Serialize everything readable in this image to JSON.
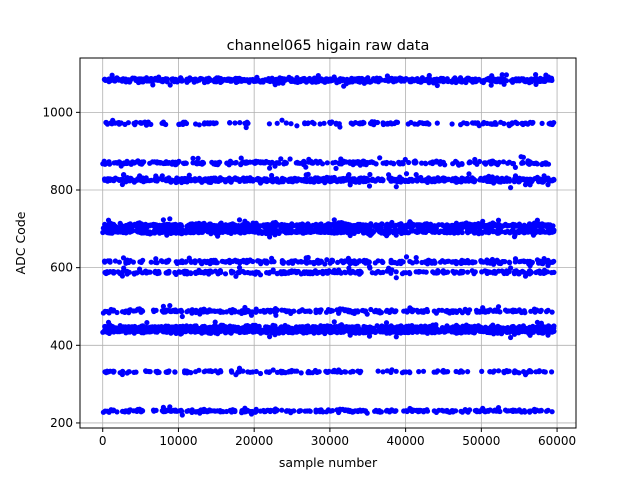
{
  "chart_data": {
    "type": "scatter",
    "title": "channel065 higain raw data",
    "xlabel": "sample number",
    "ylabel": "ADC Code",
    "xlim": [
      -3000,
      62500
    ],
    "ylim": [
      187,
      1140
    ],
    "grid": true,
    "marker_color": "#0000ff",
    "x_ticks": [
      0,
      10000,
      20000,
      30000,
      40000,
      50000,
      60000
    ],
    "x_tick_labels": [
      "0",
      "10000",
      "20000",
      "30000",
      "40000",
      "50000",
      "60000"
    ],
    "y_ticks": [
      200,
      400,
      600,
      800,
      1000
    ],
    "y_tick_labels": [
      "200",
      "400",
      "600",
      "800",
      "1000"
    ],
    "x_range": [
      0,
      59600
    ],
    "series": [
      {
        "y": 1083,
        "spread": 5,
        "density": "dense"
      },
      {
        "y": 972,
        "spread": 3,
        "density": "sparse"
      },
      {
        "y": 870,
        "spread": 4,
        "density": "medium"
      },
      {
        "y": 826,
        "spread": 5,
        "density": "dense"
      },
      {
        "y": 708,
        "spread": 5,
        "density": "dense"
      },
      {
        "y": 693,
        "spread": 4,
        "density": "dense"
      },
      {
        "y": 615,
        "spread": 4,
        "density": "medium"
      },
      {
        "y": 588,
        "spread": 4,
        "density": "medium"
      },
      {
        "y": 488,
        "spread": 4,
        "density": "medium"
      },
      {
        "y": 445,
        "spread": 5,
        "density": "dense"
      },
      {
        "y": 436,
        "spread": 4,
        "density": "dense"
      },
      {
        "y": 332,
        "spread": 3,
        "density": "sparse"
      },
      {
        "y": 231,
        "spread": 3,
        "density": "medium"
      }
    ]
  }
}
